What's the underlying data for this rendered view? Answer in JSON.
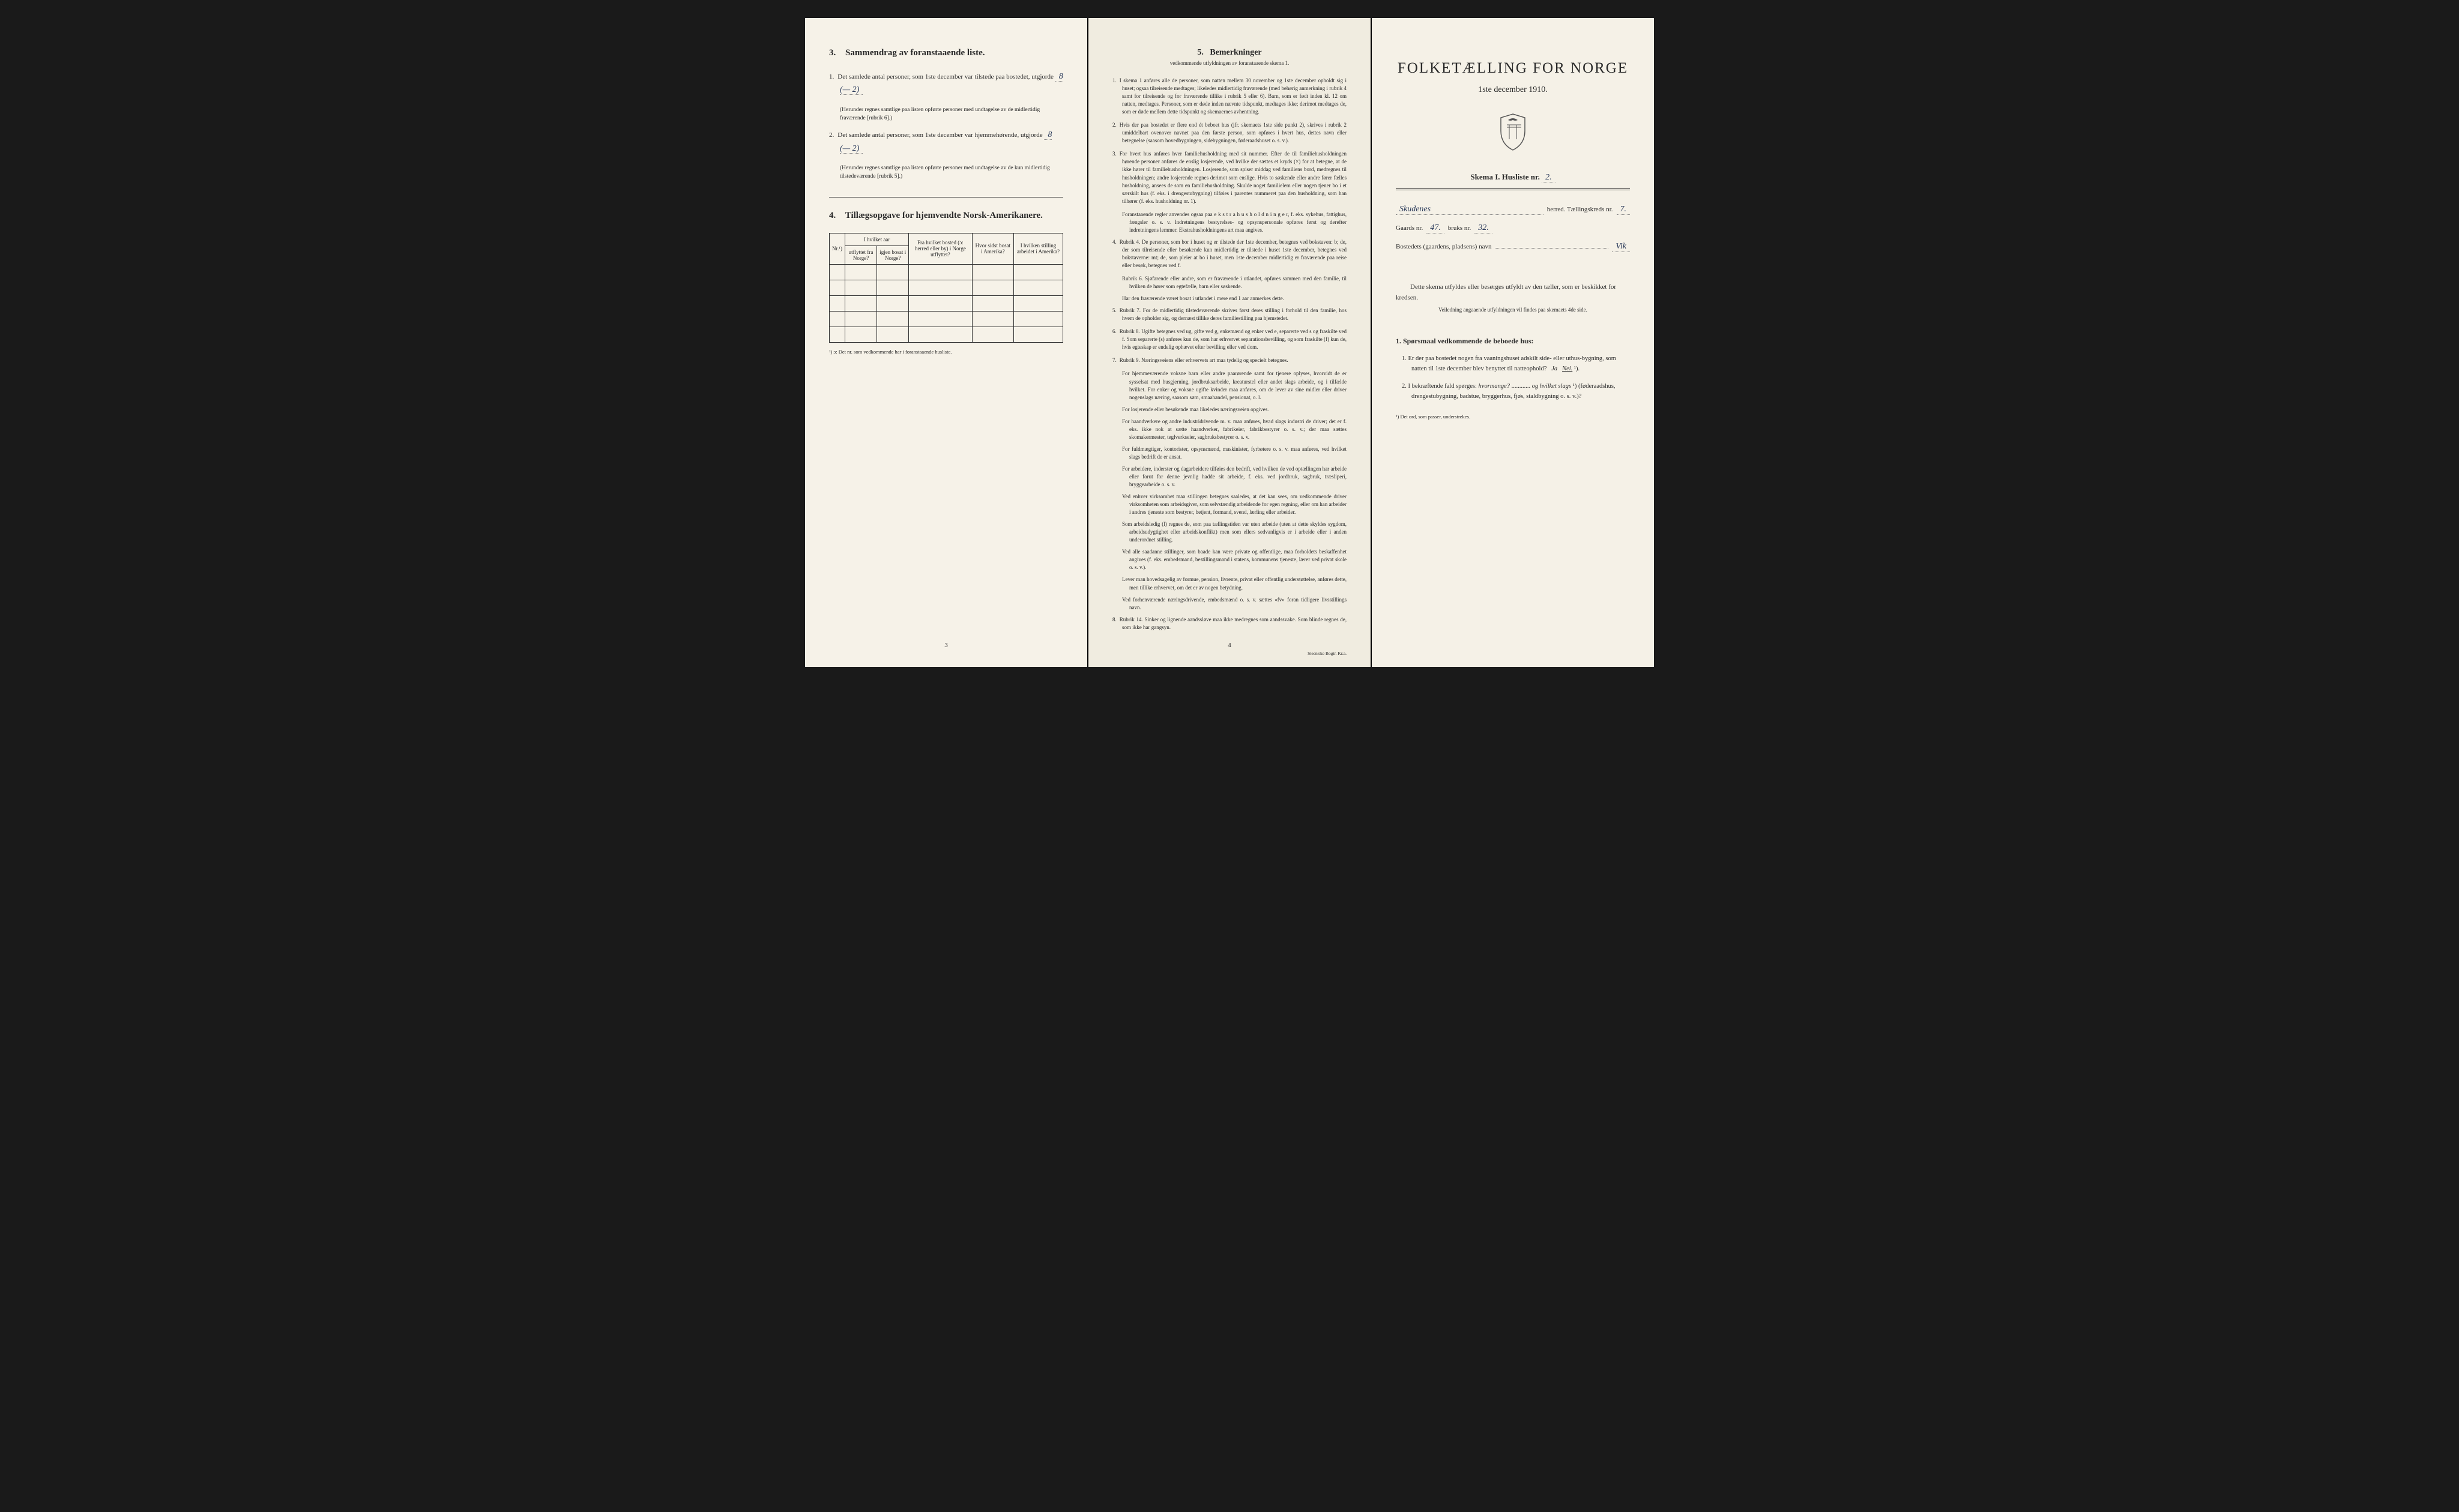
{
  "colors": {
    "page_bg": "#f4f0e6",
    "outer_bg": "#1a1a1a",
    "text": "#2a2a2a",
    "handwriting": "#2a3a5a",
    "border": "#333333",
    "dotted": "#888888"
  },
  "typography": {
    "body_family": "Georgia, Times New Roman, serif",
    "handwriting_family": "Brush Script MT, cursive",
    "title_size_pt": 25,
    "section_title_pt": 15,
    "body_pt": 11,
    "small_pt": 9
  },
  "page1": {
    "section3": {
      "title_num": "3.",
      "title": "Sammendrag av foranstaaende liste.",
      "items": [
        {
          "num": "1.",
          "text_before": "Det samlede antal personer, som 1ste december var tilstede paa bostedet, utgjorde",
          "value": "8   (— 2)",
          "note": "(Herunder regnes samtlige paa listen opførte personer med undtagelse av de midlertidig fraværende [rubrik 6].)"
        },
        {
          "num": "2.",
          "text_before": "Det samlede antal personer, som 1ste december var hjemmehørende, utgjorde",
          "value": "8   (— 2)",
          "note": "(Herunder regnes samtlige paa listen opførte personer med undtagelse av de kun midlertidig tilstedeværende [rubrik 5].)"
        }
      ]
    },
    "section4": {
      "title_num": "4.",
      "title": "Tillægsopgave for hjemvendte Norsk-Amerikanere.",
      "table": {
        "columns": [
          {
            "label": "Nr.¹)",
            "rowspan": 2
          },
          {
            "label_group": "I hvilket aar",
            "colspan": 2
          },
          {
            "label": "Fra hvilket bosted (ɔ: herred eller by) i Norge utflyttet?",
            "rowspan": 2
          },
          {
            "label": "Hvor sidst bosat i Amerika?",
            "rowspan": 2
          },
          {
            "label": "I hvilken stilling arbeidet i Amerika?",
            "rowspan": 2
          }
        ],
        "sub_columns": [
          "utflyttet fra Norge?",
          "igjen bosat i Norge?"
        ],
        "empty_rows": 5
      },
      "footnote": "¹) ɔ: Det nr. som vedkommende har i foranstaaende husliste."
    },
    "page_number": "3"
  },
  "page2": {
    "title_num": "5.",
    "title": "Bemerkninger",
    "subtitle": "vedkommende utfyldningen av foranstaaende skema 1.",
    "items": [
      {
        "num": "1.",
        "text": "I skema 1 anføres alle de personer, som natten mellem 30 november og 1ste december opholdt sig i huset; ogsaa tilreisende medtages; likeledes midlertidig fraværende (med behørig anmerkning i rubrik 4 samt for tilreisende og for fraværende tillike i rubrik 5 eller 6). Barn, som er født inden kl. 12 om natten, medtages. Personer, som er døde inden nævnte tidspunkt, medtages ikke; derimot medtages de, som er døde mellem dette tidspunkt og skemaernes avhentning."
      },
      {
        "num": "2.",
        "text": "Hvis der paa bostedet er flere end ét beboet hus (jfr. skemaets 1ste side punkt 2), skrives i rubrik 2 umiddelbart ovenover navnet paa den første person, som opføres i hvert hus, dettes navn eller betegnelse (saasom hovedbygningen, sidebygningen, føderaadshuset o. s. v.)."
      },
      {
        "num": "3.",
        "text": "For hvert hus anføres hver familiehusholdning med sit nummer. Efter de til familiehusholdningen hørende personer anføres de enslig losjerende, ved hvilke der sættes et kryds (×) for at betegne, at de ikke hører til familiehusholdningen. Losjerende, som spiser middag ved familiens bord, medregnes til husholdningen; andre losjerende regnes derimot som enslige. Hvis to søskende eller andre fører fælles husholdning, ansees de som en familiehusholdning. Skulde noget familielem eller nogen tjener bo i et særskilt hus (f. eks. i drengestubygning) tilføies i parentes nummeret paa den husholdning, som han tilhører (f. eks. husholdning nr. 1)."
      },
      {
        "sub": true,
        "text": "Foranstaaende regler anvendes ogsaa paa e k s t r a h u s h o l d n i n g e r, f. eks. sykehus, fattighus, fængsler o. s. v. Indretningens bestyrelses- og opsynspersonale opføres først og derefter indretningens lemmer. Ekstrahusholdningens art maa angives."
      },
      {
        "num": "4.",
        "text": "Rubrik 4. De personer, som bor i huset og er tilstede der 1ste december, betegnes ved bokstaven: b; de, der som tilreisende eller besøkende kun midlertidig er tilstede i huset 1ste december, betegnes ved bokstaverne: mt; de, som pleier at bo i huset, men 1ste december midlertidig er fraværende paa reise eller besøk, betegnes ved f."
      },
      {
        "sub": true,
        "text": "Rubrik 6. Sjøfarende eller andre, som er fraværende i utlandet, opføres sammen med den familie, til hvilken de hører som egtefælle, barn eller søskende."
      },
      {
        "sub": true,
        "text": "Har den fraværende været bosat i utlandet i mere end 1 aar anmerkes dette."
      },
      {
        "num": "5.",
        "text": "Rubrik 7. For de midlertidig tilstedeværende skrives først deres stilling i forhold til den familie, hos hvem de opholder sig, og dernæst tillike deres familiestilling paa hjemstedet."
      },
      {
        "num": "6.",
        "text": "Rubrik 8. Ugifte betegnes ved ug, gifte ved g, enkemænd og enker ved e, separerte ved s og fraskilte ved f. Som separerte (s) anføres kun de, som har erhvervet separationsbevilling, og som fraskilte (f) kun de, hvis egteskap er endelig ophævet efter bevilling eller ved dom."
      },
      {
        "num": "7.",
        "text": "Rubrik 9. Næringsveiens eller erhvervets art maa tydelig og specielt betegnes."
      },
      {
        "sub": true,
        "text": "For hjemmeværende voksne barn eller andre paarørende samt for tjenere oplyses, hvorvidt de er sysselsat med husgjerning, jordbruksarbeide, kreaturstel eller andet slags arbeide, og i tilfælde hvilket. For enker og voksne ugifte kvinder maa anføres, om de lever av sine midler eller driver nogenslags næring, saasom søm, smaahandel, pensionat, o. l."
      },
      {
        "sub": true,
        "text": "For losjerende eller besøkende maa likeledes næringsveien opgives."
      },
      {
        "sub": true,
        "text": "For haandverkere og andre industridrivende m. v. maa anføres, hvad slags industri de driver; det er f. eks. ikke nok at sætte haandverker, fabrikeier, fabrikbestyrer o. s. v.; der maa sættes skomakermester, teglverkseier, sagbruksbestyrer o. s. v."
      },
      {
        "sub": true,
        "text": "For fuldmægtiger, kontorister, opsynsmænd, maskinister, fyrbøtere o. s. v. maa anføres, ved hvilket slags bedrift de er ansat."
      },
      {
        "sub": true,
        "text": "For arbeidere, inderster og dagarbeidere tilføies den bedrift, ved hvilken de ved optællingen har arbeide eller forut for denne jevnlig hadde sit arbeide, f. eks. ved jordbruk, sagbruk, træsliperi, bryggearbeide o. s. v."
      },
      {
        "sub": true,
        "text": "Ved enhver virksomhet maa stillingen betegnes saaledes, at det kan sees, om vedkommende driver virksomheten som arbeidsgiver, som selvstændig arbeidende for egen regning, eller om han arbeider i andres tjeneste som bestyrer, betjent, formand, svend, lærling eller arbeider."
      },
      {
        "sub": true,
        "text": "Som arbeidsledig (l) regnes de, som paa tællingstiden var uten arbeide (uten at dette skyldes sygdom, arbeidsudygtighet eller arbeidskonflikt) men som ellers sedvanligvis er i arbeide eller i anden underordnet stilling."
      },
      {
        "sub": true,
        "text": "Ved alle saadanne stillinger, som baade kan være private og offentlige, maa forholdets beskaffenhet angives (f. eks. embedsmand, bestillingsmand i statens, kommunens tjeneste, lærer ved privat skole o. s. v.)."
      },
      {
        "sub": true,
        "text": "Lever man hovedsagelig av formue, pension, livrente, privat eller offentlig understøttelse, anføres dette, men tillike erhvervet, om det er av nogen betydning."
      },
      {
        "sub": true,
        "text": "Ved forhenværende næringsdrivende, embedsmænd o. s. v. sættes «fv» foran tidligere livsstillings navn."
      },
      {
        "num": "8.",
        "text": "Rubrik 14. Sinker og lignende aandssløve maa ikke medregnes som aandssvake. Som blinde regnes de, som ikke har gangsyn."
      }
    ],
    "page_number": "4",
    "printer": "Steen'ske Bogtr.   Kr.a."
  },
  "page3": {
    "main_title": "FOLKETÆLLING FOR NORGE",
    "date": "1ste december 1910.",
    "skema_label": "Skema I.  Husliste nr.",
    "skema_value": "2.",
    "herred": {
      "value": "Skudenes",
      "label": "herred.  Tællingskreds nr.",
      "kreds_value": "7."
    },
    "gaard": {
      "label": "Gaards nr.",
      "value": "47.",
      "bruk_label": "bruks nr.",
      "bruk_value": "32."
    },
    "bosted": {
      "label": "Bostedets (gaardens, pladsens) navn",
      "value": "Vik"
    },
    "instruction": "Dette skema utfyldes eller besørges utfyldt av den tæller, som er beskikket for kredsen.",
    "sub_instruction": "Veiledning angaaende utfyldningen vil findes paa skemaets 4de side.",
    "question_head_num": "1.",
    "question_head": "Spørsmaal vedkommende de beboede hus:",
    "questions": [
      {
        "num": "1.",
        "text": "Er der paa bostedet nogen fra vaaningshuset adskilt side- eller uthus-bygning, som natten til 1ste december blev benyttet til natteophold?",
        "answer_ja": "Ja",
        "answer_nei": "Nei.",
        "note_mark": "¹)."
      },
      {
        "num": "2.",
        "text_a": "I bekræftende fald spørges: ",
        "text_b": "hvormange?",
        "blank": " ............",
        "text_c": "og hvilket slags",
        "note_mark": "¹)",
        "text_d": "(føderaadshus, drengestubygning, badstue, bryggerhus, fjøs, staldbygning o. s. v.)?"
      }
    ],
    "footnote": "¹) Det ord, som passer, understrekes."
  }
}
